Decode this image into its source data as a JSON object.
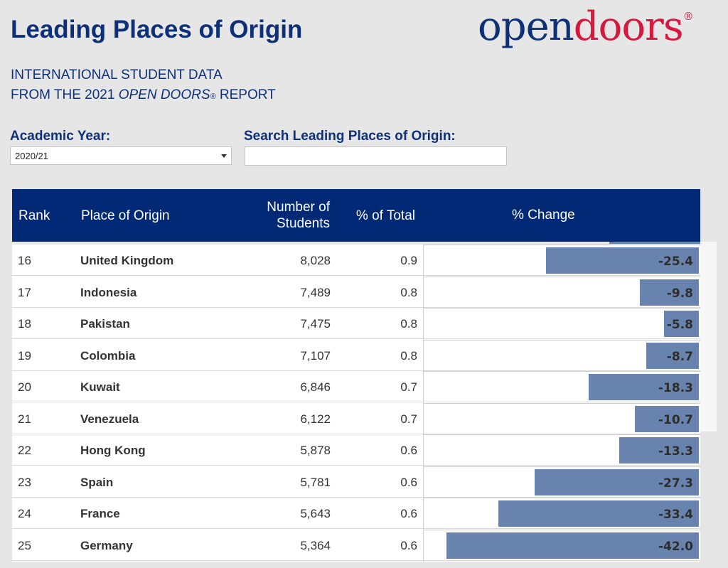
{
  "header": {
    "title": "Leading Places of Origin",
    "logo_open": "open",
    "logo_doors": "doors",
    "logo_reg": "®",
    "subtitle_line1": "INTERNATIONAL STUDENT DATA",
    "subtitle_line2_pre": "FROM THE 2021 ",
    "subtitle_line2_em": "OPEN DOORS",
    "subtitle_reg": "®",
    "subtitle_line2_post": " REPORT"
  },
  "filters": {
    "year_label": "Academic Year:",
    "year_value": "2020/21",
    "search_label": "Search Leading Places of Origin:",
    "search_value": ""
  },
  "table": {
    "columns": {
      "rank": "Rank",
      "place": "Place of Origin",
      "students_line1": "Number of",
      "students_line2": "Students",
      "pct_total": "% of Total",
      "pct_change": "% Change"
    }
  },
  "colors": {
    "title": "#0e3079",
    "header_bg": "#012975",
    "bar": "#6884ae",
    "logo_red": "#d6173e"
  },
  "chart_data": {
    "type": "table",
    "columns": [
      "Rank",
      "Place of Origin",
      "Number of Students",
      "% of Total",
      "% Change"
    ],
    "rows": [
      {
        "rank": "16",
        "place": "United Kingdom",
        "students": "8,028",
        "pct_total": "0.9",
        "pct_change": -25.4,
        "pct_change_label": "-25.4"
      },
      {
        "rank": "17",
        "place": "Indonesia",
        "students": "7,489",
        "pct_total": "0.8",
        "pct_change": -9.8,
        "pct_change_label": "-9.8"
      },
      {
        "rank": "18",
        "place": "Pakistan",
        "students": "7,475",
        "pct_total": "0.8",
        "pct_change": -5.8,
        "pct_change_label": "-5.8"
      },
      {
        "rank": "19",
        "place": "Colombia",
        "students": "7,107",
        "pct_total": "0.8",
        "pct_change": -8.7,
        "pct_change_label": "-8.7"
      },
      {
        "rank": "20",
        "place": "Kuwait",
        "students": "6,846",
        "pct_total": "0.7",
        "pct_change": -18.3,
        "pct_change_label": "-18.3"
      },
      {
        "rank": "21",
        "place": "Venezuela",
        "students": "6,122",
        "pct_total": "0.7",
        "pct_change": -10.7,
        "pct_change_label": "-10.7"
      },
      {
        "rank": "22",
        "place": "Hong Kong",
        "students": "5,878",
        "pct_total": "0.6",
        "pct_change": -13.3,
        "pct_change_label": "-13.3"
      },
      {
        "rank": "23",
        "place": "Spain",
        "students": "5,781",
        "pct_total": "0.6",
        "pct_change": -27.3,
        "pct_change_label": "-27.3"
      },
      {
        "rank": "24",
        "place": "France",
        "students": "5,643",
        "pct_total": "0.6",
        "pct_change": -33.4,
        "pct_change_label": "-33.4"
      },
      {
        "rank": "25",
        "place": "Germany",
        "students": "5,364",
        "pct_total": "0.6",
        "pct_change": -42.0,
        "pct_change_label": "-42.0"
      }
    ],
    "pct_change_range": [
      -44,
      0
    ]
  }
}
